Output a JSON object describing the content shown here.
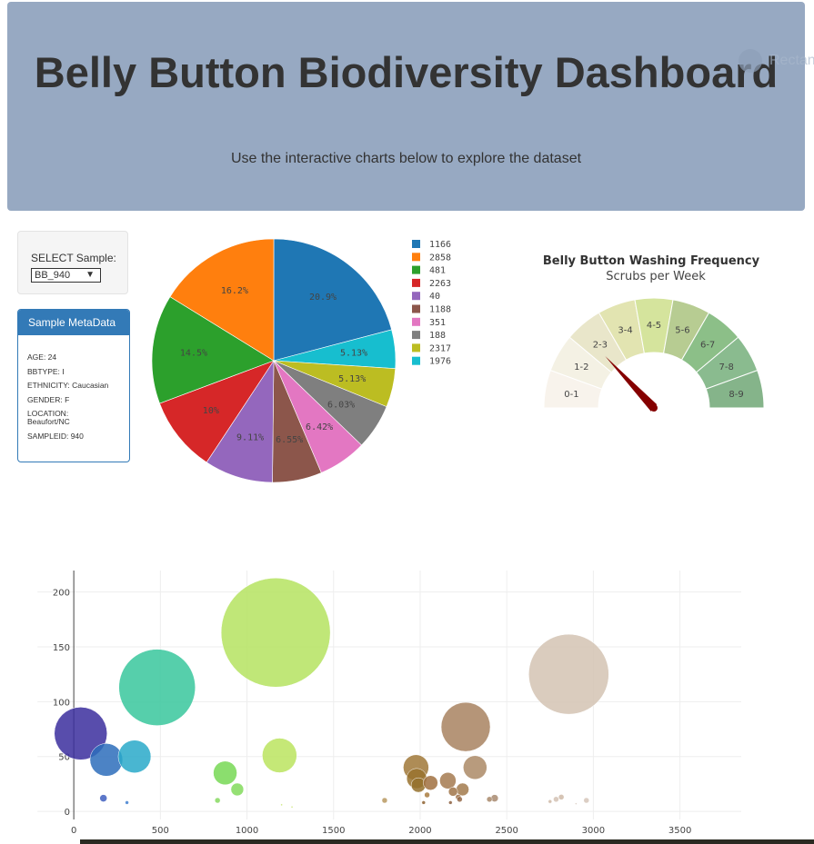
{
  "header": {
    "title": "Belly Button Biodiversity Dashboard",
    "subtitle": "Use the interactive charts below to explore the dataset",
    "ghost_text": "Rectan"
  },
  "selector": {
    "label": "SELECT Sample:",
    "value": "BB_940"
  },
  "metadata": {
    "title": "Sample MetaData",
    "rows": [
      "AGE: 24",
      "BBTYPE: I",
      "ETHNICITY: Caucasian",
      "GENDER: F",
      "LOCATION: Beaufort/NC",
      "SAMPLEID: 940"
    ]
  },
  "chart_data": [
    {
      "type": "pie",
      "labels": [
        "1166",
        "2858",
        "481",
        "2263",
        "40",
        "1188",
        "351",
        "188",
        "2317",
        "1976"
      ],
      "values": [
        20.9,
        16.2,
        14.5,
        10,
        9.11,
        6.55,
        6.42,
        6.03,
        5.13,
        5.13
      ],
      "text": [
        "20.9%",
        "16.2%",
        "14.5%",
        "10%",
        "9.11%",
        "6.55%",
        "6.42%",
        "6.03%",
        "5.13%",
        "5.13%"
      ],
      "slice_order": [
        "1166",
        "1976",
        "2317",
        "188",
        "351",
        "1188",
        "40",
        "2263",
        "481",
        "2858"
      ],
      "colors": {
        "1166": "#1f77b4",
        "2858": "#ff7f0e",
        "481": "#2ca02c",
        "2263": "#d62728",
        "40": "#9467bd",
        "1188": "#8c564b",
        "351": "#e377c2",
        "188": "#7f7f7f",
        "2317": "#bcbd22",
        "1976": "#17becf"
      },
      "legend_position": "right"
    },
    {
      "type": "gauge",
      "title": "Belly Button Washing Frequency",
      "subtitle": "Scrubs per Week",
      "categories": [
        "0-1",
        "1-2",
        "2-3",
        "3-4",
        "4-5",
        "5-6",
        "6-7",
        "7-8",
        "8-9"
      ],
      "colors": [
        "#f8f3ec",
        "#f4f1e4",
        "#e9e6ca",
        "#e2e4b1",
        "#d5e49d",
        "#b7cc92",
        "#8cbf88",
        "#8abb8f",
        "#85b48a"
      ],
      "value": 2
    },
    {
      "type": "scatter",
      "mode": "bubble",
      "xlim": [
        -300,
        3770
      ],
      "ylim": [
        -14,
        222
      ],
      "xticks": [
        0,
        500,
        1000,
        1500,
        2000,
        2500,
        3000,
        3500
      ],
      "yticks": [
        0,
        50,
        100,
        150,
        200
      ],
      "grid": true,
      "points": [
        {
          "x": 40,
          "y": 71,
          "size": 29,
          "color": "#3b2e9e"
        },
        {
          "x": 188,
          "y": 47,
          "size": 18,
          "color": "#2d6dbb"
        },
        {
          "x": 351,
          "y": 50,
          "size": 18,
          "color": "#29a9c9"
        },
        {
          "x": 481,
          "y": 113,
          "size": 42,
          "color": "#38c79c"
        },
        {
          "x": 171,
          "y": 12,
          "size": 4,
          "color": "#3f5fbf"
        },
        {
          "x": 307,
          "y": 8,
          "size": 2,
          "color": "#3f7fd0"
        },
        {
          "x": 874,
          "y": 35,
          "size": 13,
          "color": "#77d855"
        },
        {
          "x": 944,
          "y": 20,
          "size": 7,
          "color": "#82da5c"
        },
        {
          "x": 830,
          "y": 10,
          "size": 3,
          "color": "#87d960"
        },
        {
          "x": 1166,
          "y": 163,
          "size": 60,
          "color": "#b5e360"
        },
        {
          "x": 1188,
          "y": 51,
          "size": 19,
          "color": "#bbe45f"
        },
        {
          "x": 1200,
          "y": 6,
          "size": 1,
          "color": "#c2e462"
        },
        {
          "x": 1260,
          "y": 4,
          "size": 1,
          "color": "#c7e464"
        },
        {
          "x": 1795,
          "y": 10,
          "size": 3,
          "color": "#b89960"
        },
        {
          "x": 1976,
          "y": 40,
          "size": 14,
          "color": "#a07838"
        },
        {
          "x": 1980,
          "y": 30,
          "size": 11,
          "color": "#99722e"
        },
        {
          "x": 1990,
          "y": 24,
          "size": 8,
          "color": "#94702c"
        },
        {
          "x": 2040,
          "y": 15,
          "size": 3,
          "color": "#a97c40"
        },
        {
          "x": 2020,
          "y": 8,
          "size": 2,
          "color": "#8e6230"
        },
        {
          "x": 2060,
          "y": 26,
          "size": 8,
          "color": "#a07040"
        },
        {
          "x": 2160,
          "y": 28,
          "size": 9,
          "color": "#a57a50"
        },
        {
          "x": 2190,
          "y": 18,
          "size": 5,
          "color": "#a07448"
        },
        {
          "x": 2220,
          "y": 13,
          "size": 3,
          "color": "#9c6e44"
        },
        {
          "x": 2245,
          "y": 20,
          "size": 7,
          "color": "#a27a4c"
        },
        {
          "x": 2263,
          "y": 77,
          "size": 27,
          "color": "#a88360"
        },
        {
          "x": 2317,
          "y": 40,
          "size": 13,
          "color": "#ac8a66"
        },
        {
          "x": 2175,
          "y": 8,
          "size": 2,
          "color": "#8c6040"
        },
        {
          "x": 2228,
          "y": 11,
          "size": 3,
          "color": "#946848"
        },
        {
          "x": 2400,
          "y": 11,
          "size": 3,
          "color": "#a8886a"
        },
        {
          "x": 2430,
          "y": 12,
          "size": 4,
          "color": "#a88a70"
        },
        {
          "x": 2858,
          "y": 125,
          "size": 44,
          "color": "#d3c3b3"
        },
        {
          "x": 2750,
          "y": 9,
          "size": 2,
          "color": "#ceb8a6"
        },
        {
          "x": 2785,
          "y": 11,
          "size": 3,
          "color": "#d4c2b4"
        },
        {
          "x": 2815,
          "y": 13,
          "size": 3,
          "color": "#cfbaa8"
        },
        {
          "x": 2900,
          "y": 7,
          "size": 1,
          "color": "#d8cabe"
        },
        {
          "x": 2960,
          "y": 10,
          "size": 3,
          "color": "#d6c6ba"
        }
      ]
    }
  ]
}
